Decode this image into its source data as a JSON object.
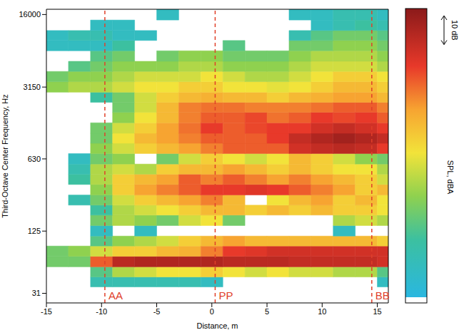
{
  "chart_data": {
    "type": "heatmap",
    "x_label": "Distance, m",
    "y_label": "Third-Octave Center Frequency, Hz",
    "log": "y",
    "xlim": [
      -15,
      16
    ],
    "xticks": [
      -15,
      -10,
      -5,
      0,
      5,
      10,
      15
    ],
    "ylim": [
      25,
      18000
    ],
    "yticks": [
      31,
      125,
      630,
      3150,
      16000
    ],
    "x_edges": [
      -15,
      -13,
      -11,
      -9,
      -7,
      -5,
      -3,
      -1,
      1,
      3,
      5,
      7,
      9,
      11,
      13,
      15,
      16
    ],
    "bands": [
      40,
      50,
      63,
      80,
      100,
      125,
      160,
      200,
      250,
      315,
      400,
      500,
      630,
      800,
      1000,
      1250,
      1600,
      2000,
      2500,
      3150,
      4000,
      5000,
      6300,
      8000,
      10000,
      12500,
      16000
    ],
    "cells": [
      [
        null,
        null,
        15,
        15,
        15,
        15,
        15,
        10,
        null,
        null,
        null,
        null,
        null,
        null,
        null,
        10
      ],
      [
        null,
        null,
        25,
        40,
        45,
        50,
        50,
        55,
        50,
        45,
        50,
        45,
        45,
        40,
        40,
        25
      ],
      [
        30,
        30,
        75,
        90,
        92,
        92,
        92,
        92,
        90,
        90,
        90,
        88,
        88,
        88,
        88,
        85
      ],
      [
        30,
        35,
        45,
        55,
        55,
        60,
        62,
        70,
        80,
        82,
        85,
        85,
        85,
        85,
        85,
        85
      ],
      [
        null,
        null,
        25,
        35,
        40,
        45,
        55,
        60,
        65,
        60,
        60,
        60,
        60,
        60,
        60,
        55
      ],
      [
        null,
        null,
        10,
        null,
        10,
        null,
        null,
        null,
        null,
        null,
        null,
        null,
        null,
        10,
        null,
        null
      ],
      [
        null,
        null,
        30,
        40,
        35,
        30,
        45,
        50,
        30,
        null,
        null,
        null,
        null,
        40,
        45,
        40
      ],
      [
        null,
        null,
        20,
        40,
        45,
        50,
        55,
        60,
        60,
        55,
        60,
        55,
        60,
        55,
        55,
        50
      ],
      [
        null,
        15,
        30,
        45,
        55,
        60,
        65,
        70,
        60,
        null,
        50,
        60,
        65,
        55,
        60,
        50
      ],
      [
        null,
        null,
        35,
        55,
        65,
        70,
        75,
        80,
        80,
        82,
        80,
        75,
        70,
        65,
        55,
        60
      ],
      [
        null,
        20,
        40,
        55,
        60,
        65,
        75,
        70,
        75,
        70,
        65,
        70,
        65,
        60,
        55,
        45
      ],
      [
        null,
        15,
        40,
        45,
        40,
        55,
        60,
        60,
        65,
        60,
        55,
        60,
        55,
        50,
        50,
        40
      ],
      [
        null,
        10,
        30,
        35,
        null,
        30,
        45,
        55,
        50,
        45,
        50,
        60,
        55,
        45,
        35,
        30
      ],
      [
        null,
        null,
        35,
        45,
        55,
        60,
        65,
        70,
        75,
        75,
        75,
        85,
        88,
        90,
        88,
        80
      ],
      [
        null,
        null,
        30,
        50,
        60,
        65,
        70,
        75,
        75,
        75,
        80,
        88,
        92,
        95,
        92,
        88
      ],
      [
        null,
        null,
        30,
        45,
        55,
        65,
        72,
        80,
        75,
        78,
        80,
        80,
        85,
        88,
        85,
        80
      ],
      [
        null,
        null,
        null,
        35,
        50,
        60,
        70,
        75,
        75,
        78,
        72,
        75,
        80,
        78,
        80,
        75
      ],
      [
        null,
        null,
        null,
        30,
        45,
        60,
        70,
        72,
        72,
        70,
        70,
        70,
        72,
        75,
        75,
        70
      ],
      [
        null,
        null,
        20,
        30,
        45,
        55,
        60,
        62,
        60,
        60,
        55,
        60,
        62,
        65,
        65,
        60
      ],
      [
        35,
        40,
        40,
        45,
        50,
        50,
        55,
        55,
        50,
        50,
        48,
        50,
        55,
        60,
        60,
        55
      ],
      [
        30,
        35,
        35,
        40,
        45,
        45,
        45,
        50,
        45,
        40,
        40,
        45,
        50,
        55,
        55,
        50
      ],
      [
        null,
        25,
        30,
        35,
        35,
        35,
        40,
        40,
        35,
        35,
        35,
        40,
        45,
        45,
        45,
        40
      ],
      [
        null,
        null,
        25,
        30,
        null,
        30,
        35,
        35,
        30,
        30,
        30,
        35,
        40,
        40,
        40,
        35
      ],
      [
        10,
        10,
        10,
        20,
        null,
        null,
        null,
        null,
        25,
        null,
        null,
        30,
        30,
        35,
        35,
        30
      ],
      [
        10,
        15,
        15,
        10,
        10,
        null,
        null,
        null,
        null,
        null,
        null,
        15,
        25,
        30,
        30,
        25
      ],
      [
        null,
        null,
        10,
        10,
        null,
        null,
        null,
        null,
        null,
        null,
        null,
        null,
        10,
        15,
        20,
        15
      ],
      [
        null,
        null,
        null,
        null,
        null,
        10,
        null,
        null,
        null,
        null,
        null,
        10,
        10,
        15,
        15,
        10
      ]
    ],
    "colorbar": {
      "label": "SPL, dBA",
      "range": [
        0,
        100
      ],
      "scale_bar": {
        "value": 10,
        "label": "10 dB"
      }
    },
    "annotations": [
      {
        "x": -9.7,
        "label": "AA"
      },
      {
        "x": 0.3,
        "label": "PP"
      },
      {
        "x": 14.5,
        "label": "BB"
      }
    ]
  }
}
